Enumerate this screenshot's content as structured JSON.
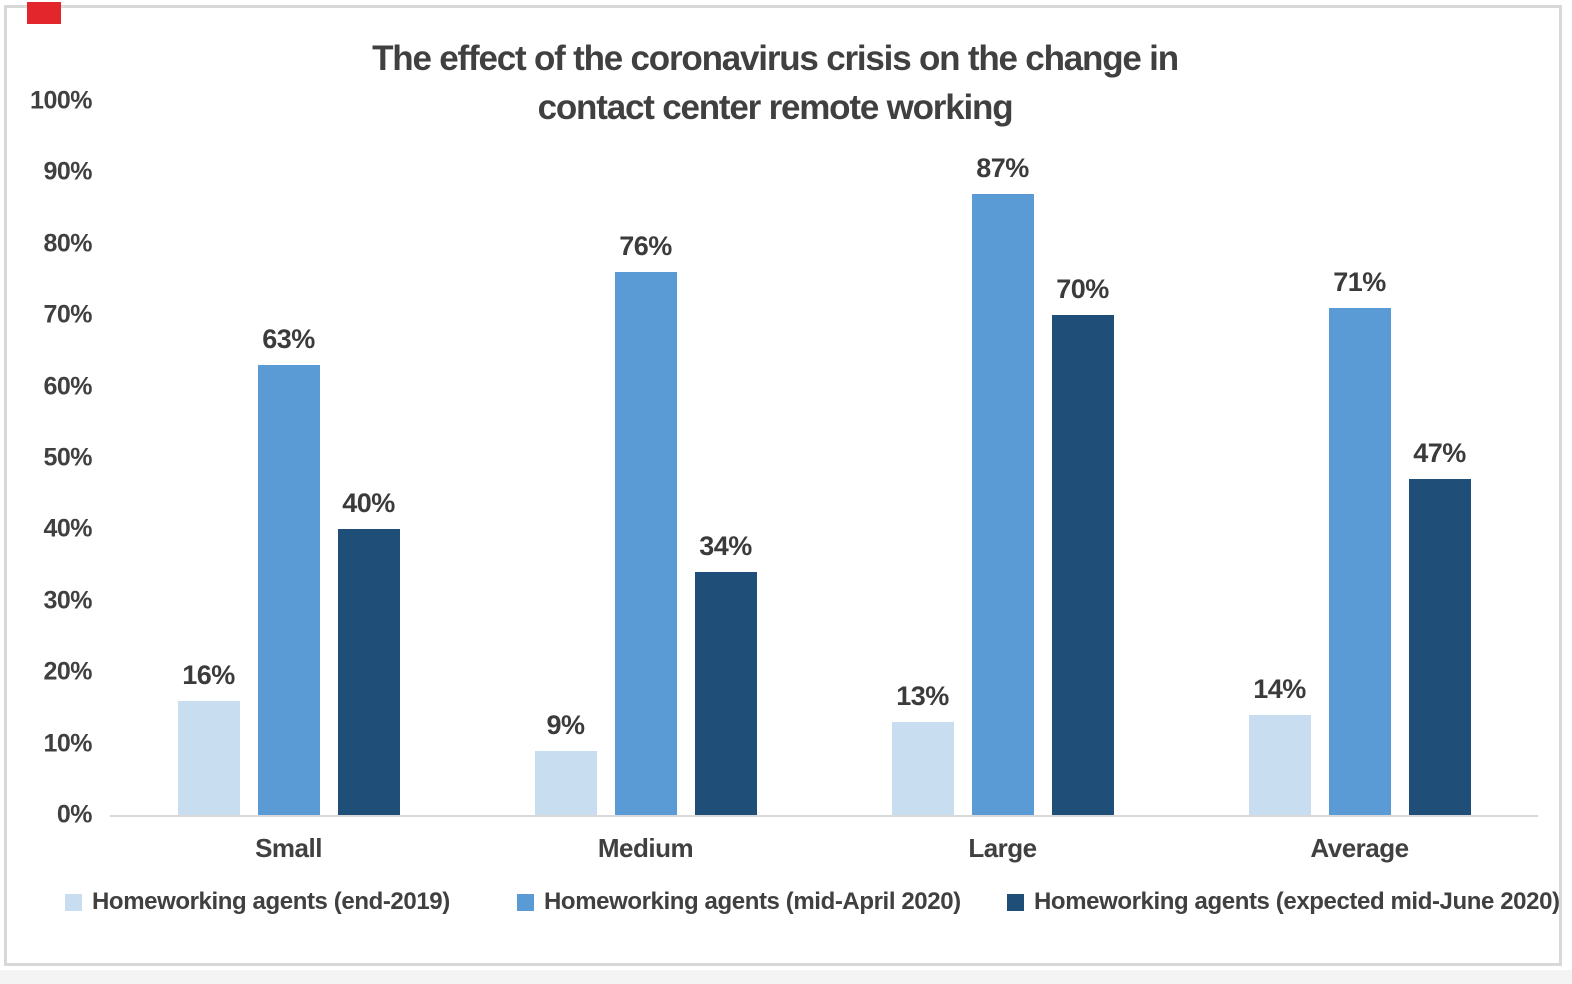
{
  "chart_data": {
    "type": "bar",
    "title": "The effect of the coronavirus crisis on the change in contact center remote working",
    "title_lines": [
      "The effect of the coronavirus crisis on the change in",
      "contact center remote working"
    ],
    "categories": [
      "Small",
      "Medium",
      "Large",
      "Average"
    ],
    "series": [
      {
        "name": "Homeworking agents (end-2019)",
        "color": "#c9ddf0",
        "values": [
          16,
          9,
          13,
          14
        ],
        "labels": [
          "16%",
          "9%",
          "13%",
          "14%"
        ]
      },
      {
        "name": "Homeworking agents (mid-April 2020)",
        "color": "#5b9bd5",
        "values": [
          63,
          76,
          87,
          71
        ],
        "labels": [
          "63%",
          "76%",
          "87%",
          "71%"
        ]
      },
      {
        "name": "Homeworking agents (expected mid-June 2020)",
        "color": "#1f4e79",
        "values": [
          40,
          34,
          70,
          47
        ],
        "labels": [
          "40%",
          "34%",
          "70%",
          "47%"
        ]
      }
    ],
    "y_axis": {
      "ticks": [
        "0%",
        "10%",
        "20%",
        "30%",
        "40%",
        "50%",
        "60%",
        "70%",
        "80%",
        "90%",
        "100%"
      ],
      "min": 0,
      "max": 100,
      "step": 10
    },
    "grid": false,
    "data_labels": true,
    "legend_position": "bottom"
  },
  "colors": {
    "title_text": "#404040",
    "label_text": "#3b3b3b",
    "axis_line": "#d9d9d9",
    "frame_border": "#d8d8d8",
    "background": "#ffffff",
    "bottom_strip": "#f4f4f4",
    "corner_marker": "#e3262c"
  }
}
